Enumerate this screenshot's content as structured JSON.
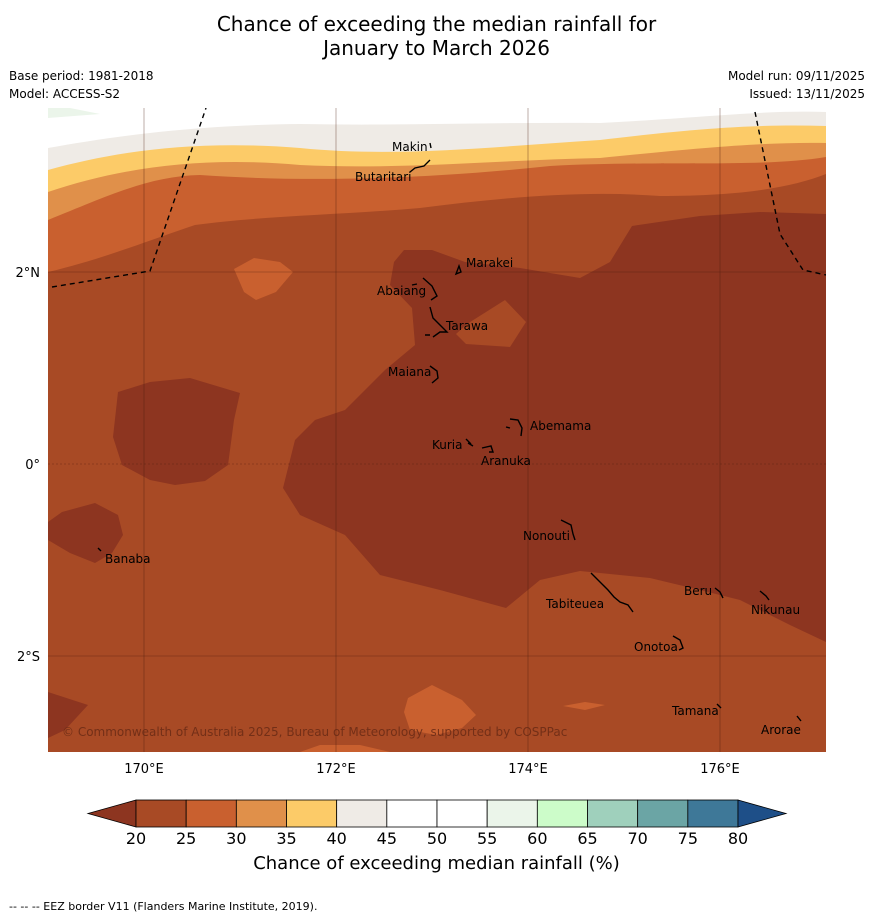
{
  "title_line1": "Chance of exceeding the median rainfall for",
  "title_line2": "January to March 2026",
  "base_period": "Base period: 1981-2018",
  "model": "Model: ACCESS-S2",
  "model_run": "Model run: 09/11/2025",
  "issued": "Issued: 13/11/2025",
  "copyright": "© Commonwealth of Australia 2025, Bureau of Meteorology, supported by COSPPac",
  "lat_labels": [
    "2°N",
    "0°",
    "2°S"
  ],
  "lon_labels": [
    "170°E",
    "172°E",
    "174°E",
    "176°E"
  ],
  "islands": [
    "Makin",
    "Butaritari",
    "Marakei",
    "Abaiang",
    "Tarawa",
    "Maiana",
    "Abemama",
    "Kuria",
    "Aranuka",
    "Nonouti",
    "Banaba",
    "Beru",
    "Nikunau",
    "Tabiteuea",
    "Onotoa",
    "Tamana",
    "Arorae"
  ],
  "colorbar": {
    "ticks": [
      "20",
      "25",
      "30",
      "35",
      "40",
      "45",
      "50",
      "55",
      "60",
      "65",
      "70",
      "75",
      "80"
    ],
    "colors": [
      "#a84a25",
      "#c9602f",
      "#e0904a",
      "#fccb68",
      "#efebe6",
      "#ffffff",
      "#ffffff",
      "#ebf5ea",
      "#ccfcc9",
      "#9fd0bc",
      "#6ba5a5",
      "#3e7898"
    ],
    "low_color": "#8d3520",
    "high_color": "#1e4f88",
    "label": "Chance of exceeding median rainfall (%)"
  },
  "footnote": "--  --  -- EEZ border V11 (Flanders Marine Institute, 2019)."
}
